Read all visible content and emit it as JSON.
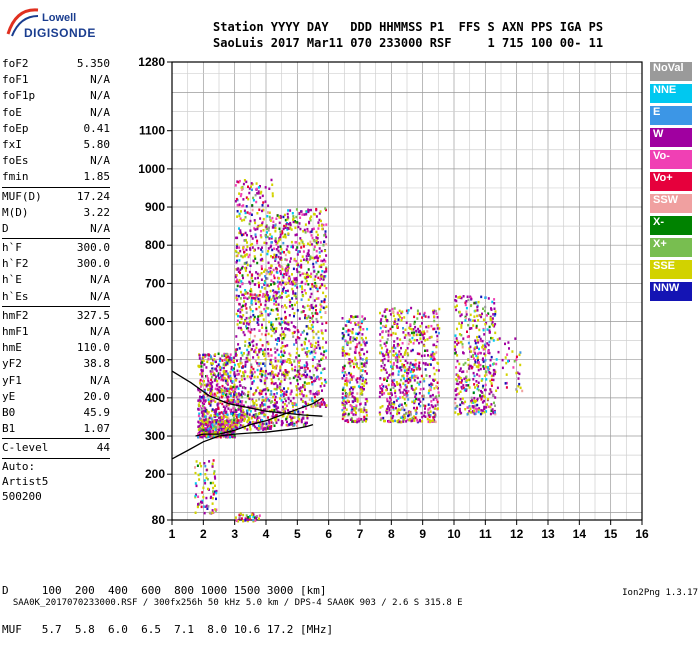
{
  "logo": {
    "line1": "Lowell",
    "line2": "DIGISONDE"
  },
  "header": {
    "line1": "Station YYYY DAY   DDD HHMMSS P1  FFS S AXN PPS IGA PS",
    "line2": "SaoLuis 2017 Mar11 070 233000 RSF     1 715 100 00- 11"
  },
  "params_group1": [
    {
      "name": "foF2",
      "value": "5.350"
    },
    {
      "name": "foF1",
      "value": "N/A"
    },
    {
      "name": "foF1p",
      "value": "N/A"
    },
    {
      "name": "foE",
      "value": "N/A"
    },
    {
      "name": "foEp",
      "value": "0.41"
    },
    {
      "name": "fxI",
      "value": "5.80"
    },
    {
      "name": "foEs",
      "value": "N/A"
    },
    {
      "name": "fmin",
      "value": "1.85"
    }
  ],
  "params_group2": [
    {
      "name": "MUF(D)",
      "value": "17.24"
    },
    {
      "name": "M(D)",
      "value": "3.22"
    },
    {
      "name": "D",
      "value": "N/A"
    }
  ],
  "params_group3": [
    {
      "name": "h`F",
      "value": "300.0"
    },
    {
      "name": "h`F2",
      "value": "300.0"
    },
    {
      "name": "h`E",
      "value": "N/A"
    },
    {
      "name": "h`Es",
      "value": "N/A"
    }
  ],
  "params_group4": [
    {
      "name": "hmF2",
      "value": "327.5"
    },
    {
      "name": "hmF1",
      "value": "N/A"
    },
    {
      "name": "hmE",
      "value": "110.0"
    },
    {
      "name": "yF2",
      "value": "38.8"
    },
    {
      "name": "yF1",
      "value": "N/A"
    },
    {
      "name": "yE",
      "value": "20.0"
    },
    {
      "name": "B0",
      "value": "45.9"
    },
    {
      "name": "B1",
      "value": "1.07"
    }
  ],
  "clevel": {
    "name": "C-level",
    "value": "44"
  },
  "auto": {
    "line1": "Auto:",
    "line2": "Artist5",
    "line3": "500200"
  },
  "legend": [
    {
      "label": "NoVal",
      "color": "#9a9a9a"
    },
    {
      "label": "NNE",
      "color": "#00c8f0"
    },
    {
      "label": "E",
      "color": "#3c96e6"
    },
    {
      "label": "W",
      "color": "#a000a0"
    },
    {
      "label": "Vo-",
      "color": "#f040b4"
    },
    {
      "label": "Vo+",
      "color": "#e6003c"
    },
    {
      "label": "SSW",
      "color": "#f0a0a0"
    },
    {
      "label": "X-",
      "color": "#008200"
    },
    {
      "label": "X+",
      "color": "#78be50"
    },
    {
      "label": "SSE",
      "color": "#d2d200"
    },
    {
      "label": "NNW",
      "color": "#1414b4"
    }
  ],
  "bottom": {
    "line1": "D     100  200  400  600  800 1000 1500 3000 [km]",
    "line2": "MUF   5.7  5.8  6.0  6.5  7.1  8.0 10.6 17.2 [MHz]"
  },
  "footer": {
    "left": "SAA0K_2017070233000.RSF / 300fx256h 50 kHz 5.0 km / DPS-4 SAA0K 903 / 2.6 S 315.8 E",
    "right": "Ion2Png 1.3.17"
  },
  "chart_data": {
    "type": "scatter",
    "title": "",
    "xlabel": "",
    "ylabel": "",
    "xlim": [
      1,
      16
    ],
    "ylim": [
      80,
      1280
    ],
    "x_ticks": [
      1,
      2,
      3,
      4,
      5,
      6,
      7,
      8,
      9,
      10,
      11,
      12,
      13,
      14,
      15,
      16
    ],
    "y_ticks": [
      80,
      200,
      300,
      400,
      500,
      600,
      700,
      800,
      900,
      1000,
      1100,
      1280
    ],
    "grid": true,
    "legend_position": "right",
    "traces": [
      {
        "name": "profile_upper",
        "color": "#000000",
        "points": [
          [
            1.0,
            470
          ],
          [
            1.6,
            440
          ],
          [
            2.2,
            405
          ],
          [
            2.8,
            385
          ],
          [
            3.4,
            375
          ],
          [
            4.0,
            365
          ],
          [
            4.6,
            360
          ],
          [
            5.2,
            355
          ],
          [
            5.8,
            352
          ]
        ]
      },
      {
        "name": "profile_lower",
        "color": "#000000",
        "points": [
          [
            1.0,
            240
          ],
          [
            1.5,
            262
          ],
          [
            2.0,
            285
          ],
          [
            2.5,
            300
          ],
          [
            3.0,
            305
          ],
          [
            3.5,
            308
          ],
          [
            4.0,
            310
          ],
          [
            4.5,
            315
          ],
          [
            5.0,
            320
          ],
          [
            5.3,
            325
          ],
          [
            5.5,
            330
          ]
        ]
      },
      {
        "name": "trace_F",
        "color": "#000000",
        "points": [
          [
            1.75,
            300
          ],
          [
            2.0,
            305
          ],
          [
            2.5,
            305
          ],
          [
            3.0,
            315
          ],
          [
            3.5,
            330
          ],
          [
            4.0,
            340
          ],
          [
            4.5,
            355
          ],
          [
            5.0,
            370
          ],
          [
            5.5,
            385
          ],
          [
            5.8,
            400
          ]
        ]
      }
    ],
    "clusters": [
      {
        "x": [
          1.8,
          3.0
        ],
        "y": [
          300,
          340
        ],
        "n": 350
      },
      {
        "x": [
          1.8,
          3.2
        ],
        "y": [
          340,
          420
        ],
        "n": 300
      },
      {
        "x": [
          1.8,
          3.0
        ],
        "y": [
          420,
          520
        ],
        "n": 250
      },
      {
        "x": [
          3.0,
          4.2
        ],
        "y": [
          320,
          660
        ],
        "n": 500
      },
      {
        "x": [
          3.0,
          4.2
        ],
        "y": [
          660,
          980
        ],
        "n": 350
      },
      {
        "x": [
          4.2,
          5.3
        ],
        "y": [
          330,
          700
        ],
        "n": 450
      },
      {
        "x": [
          4.2,
          5.3
        ],
        "y": [
          700,
          900
        ],
        "n": 250
      },
      {
        "x": [
          5.3,
          5.9
        ],
        "y": [
          380,
          720
        ],
        "n": 200
      },
      {
        "x": [
          5.3,
          5.9
        ],
        "y": [
          720,
          900
        ],
        "n": 120
      },
      {
        "x": [
          6.4,
          7.2
        ],
        "y": [
          340,
          620
        ],
        "n": 320
      },
      {
        "x": [
          7.6,
          9.5
        ],
        "y": [
          340,
          640
        ],
        "n": 650
      },
      {
        "x": [
          10.0,
          11.3
        ],
        "y": [
          360,
          670
        ],
        "n": 420
      },
      {
        "x": [
          1.7,
          2.4
        ],
        "y": [
          100,
          240
        ],
        "n": 80
      },
      {
        "x": [
          3.0,
          3.8
        ],
        "y": [
          80,
          100
        ],
        "n": 40
      },
      {
        "x": [
          11.3,
          12.2
        ],
        "y": [
          420,
          560
        ],
        "n": 40
      }
    ]
  }
}
